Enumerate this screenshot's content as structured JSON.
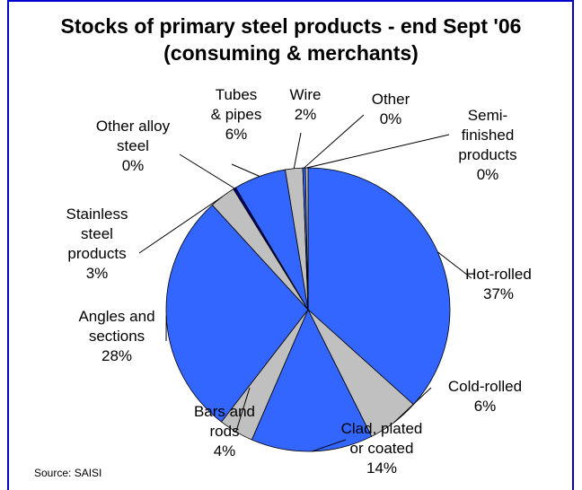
{
  "chart_data": {
    "type": "pie",
    "title": "Stocks of primary steel products - end Sept '06 (consuming & merchants)",
    "source": "Source: SAISI",
    "categories": [
      "Hot-rolled",
      "Cold-rolled",
      "Clad, plated or coated",
      "Bars and rods",
      "Angles and sections",
      "Stainless steel products",
      "Other alloy steel",
      "Tubes & pipes",
      "Wire",
      "Other",
      "Semi-finished products"
    ],
    "values": [
      37,
      6,
      14,
      4,
      28,
      3,
      0.3,
      6,
      2,
      0.3,
      0.3
    ],
    "value_labels": [
      "37%",
      "6%",
      "14%",
      "4%",
      "28%",
      "3%",
      "0%",
      "6%",
      "2%",
      "0%",
      "0%"
    ],
    "colors": [
      "#3366ff",
      "#c0c0c0",
      "#3366ff",
      "#c0c0c0",
      "#3366ff",
      "#c0c0c0",
      "#000080",
      "#3366ff",
      "#c0c0c0",
      "#3366ff",
      "#c0c0c0"
    ]
  }
}
